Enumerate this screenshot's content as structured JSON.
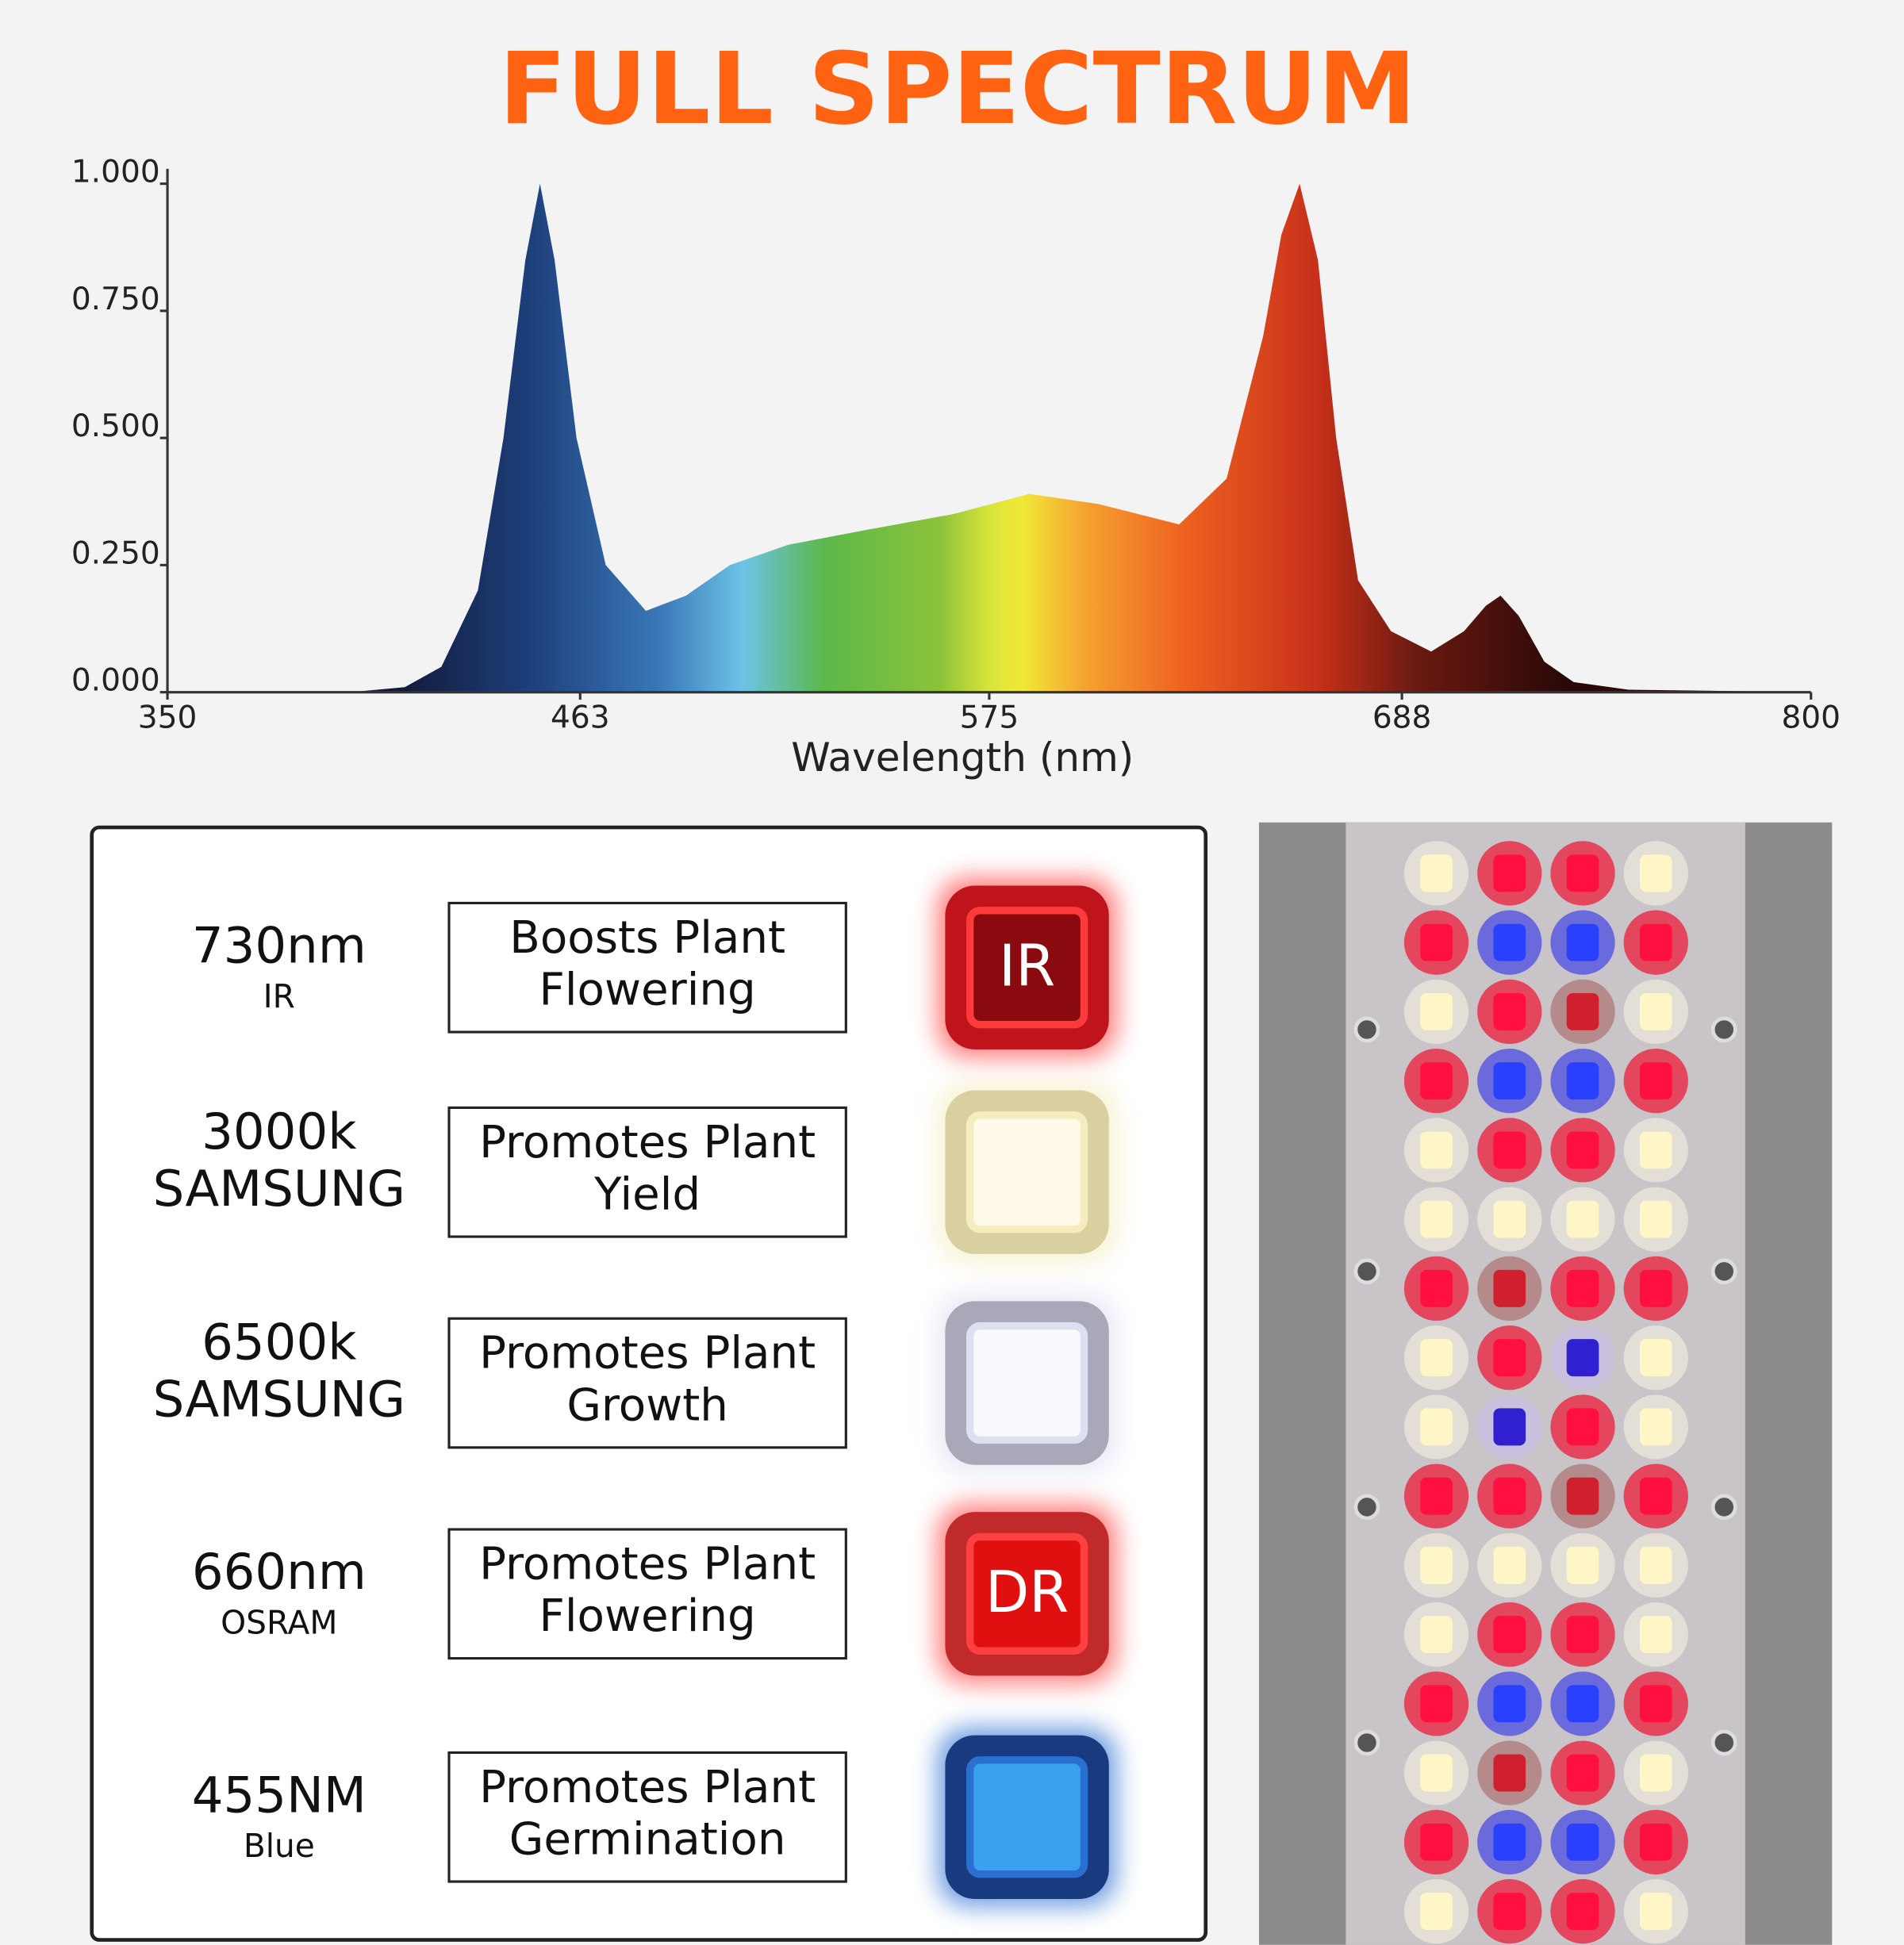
{
  "chart_data": {
    "type": "area",
    "title": "FULL SPECTRUM",
    "x_label": "Wavelength (nm)",
    "x": [
      350,
      400,
      415,
      425,
      435,
      442,
      448,
      452,
      456,
      462,
      470,
      481,
      492,
      504,
      520,
      542,
      565,
      586,
      605,
      627,
      640,
      650,
      655,
      660,
      665,
      670,
      676,
      685,
      696,
      705,
      711,
      715,
      720,
      727,
      735,
      750,
      800
    ],
    "values": [
      0,
      0,
      0.01,
      0.05,
      0.2,
      0.5,
      0.85,
      1.0,
      0.85,
      0.5,
      0.25,
      0.16,
      0.19,
      0.25,
      0.29,
      0.32,
      0.35,
      0.39,
      0.37,
      0.33,
      0.42,
      0.7,
      0.9,
      1.0,
      0.85,
      0.5,
      0.22,
      0.12,
      0.08,
      0.12,
      0.17,
      0.19,
      0.15,
      0.06,
      0.02,
      0.005,
      0
    ],
    "xlim": [
      350,
      800
    ],
    "xticks": [
      350,
      463,
      575,
      688,
      800
    ],
    "ylim": [
      0,
      1
    ],
    "yticks": [
      {
        "value": 0,
        "label": "0.000"
      },
      {
        "value": 0.25,
        "label": "0.250"
      },
      {
        "value": 0.5,
        "label": "0.500"
      },
      {
        "value": 0.75,
        "label": "0.750"
      },
      {
        "value": 1,
        "label": "1.000"
      }
    ]
  },
  "panel": {
    "rows": [
      {
        "title": "730nm",
        "subtitle": "IR",
        "description": [
          "Boosts Plant",
          "Flowering"
        ],
        "badge": "IR"
      },
      {
        "title": "3000k",
        "subtitle": "SAMSUNG",
        "description": [
          "Promotes Plant",
          "Yield"
        ]
      },
      {
        "title": "6500k",
        "subtitle": "SAMSUNG",
        "description": [
          "Promotes Plant",
          "Growth"
        ]
      },
      {
        "title": "660nm",
        "subtitle": "OSRAM",
        "description": [
          "Promotes Plant",
          "Flowering"
        ],
        "badge": "DR"
      },
      {
        "title": "455NM",
        "subtitle": "Blue",
        "description": [
          "Promotes Plant",
          "Germination"
        ]
      }
    ]
  }
}
